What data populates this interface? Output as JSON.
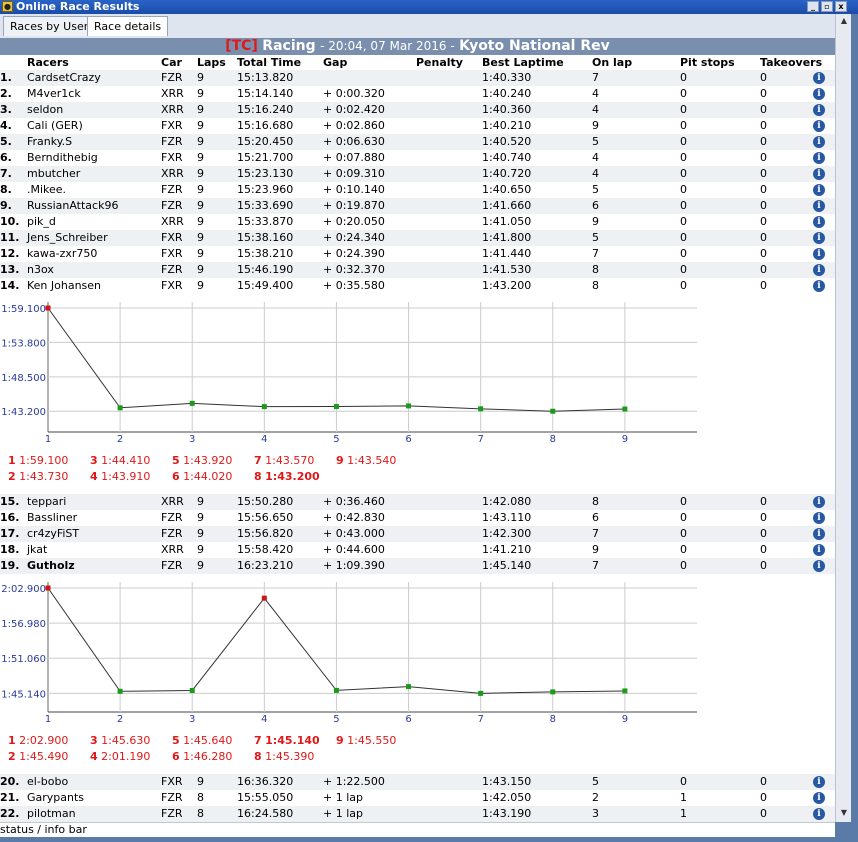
{
  "window": {
    "title": "Online Race Results",
    "minimize": "_",
    "maximize": "▫",
    "close": "x"
  },
  "tabs": [
    {
      "label": "Races by User"
    },
    {
      "label": "Race details"
    }
  ],
  "race": {
    "tag": "[TC]",
    "session": "Racing",
    "time": "- 20:04, 07 Mar 2016 -",
    "track": "Kyoto National Rev"
  },
  "headers": {
    "racers": "Racers",
    "car": "Car",
    "laps": "Laps",
    "total": "Total Time",
    "gap": "Gap",
    "penalty": "Penalty",
    "best": "Best Laptime",
    "onlap": "On lap",
    "pit": "Pit stops",
    "take": "Takeovers"
  },
  "rows1": [
    {
      "pos": "1.",
      "name": "CardsetCrazy",
      "car": "FZR",
      "laps": "9",
      "total": "15:13.820",
      "gap": "",
      "best": "1:40.330",
      "onlap": "7",
      "pit": "0",
      "take": "0"
    },
    {
      "pos": "2.",
      "name": "M4ver1ck",
      "car": "XRR",
      "laps": "9",
      "total": "15:14.140",
      "gap": "+ 0:00.320",
      "best": "1:40.240",
      "onlap": "4",
      "pit": "0",
      "take": "0"
    },
    {
      "pos": "3.",
      "name": "seldon",
      "car": "XRR",
      "laps": "9",
      "total": "15:16.240",
      "gap": "+ 0:02.420",
      "best": "1:40.360",
      "onlap": "4",
      "pit": "0",
      "take": "0"
    },
    {
      "pos": "4.",
      "name": "Cali (GER)",
      "car": "FXR",
      "laps": "9",
      "total": "15:16.680",
      "gap": "+ 0:02.860",
      "best": "1:40.210",
      "onlap": "9",
      "pit": "0",
      "take": "0"
    },
    {
      "pos": "5.",
      "name": "Franky.S",
      "car": "FZR",
      "laps": "9",
      "total": "15:20.450",
      "gap": "+ 0:06.630",
      "best": "1:40.520",
      "onlap": "5",
      "pit": "0",
      "take": "0"
    },
    {
      "pos": "6.",
      "name": "Berndithebig",
      "car": "FXR",
      "laps": "9",
      "total": "15:21.700",
      "gap": "+ 0:07.880",
      "best": "1:40.740",
      "onlap": "4",
      "pit": "0",
      "take": "0"
    },
    {
      "pos": "7.",
      "name": "mbutcher",
      "car": "XRR",
      "laps": "9",
      "total": "15:23.130",
      "gap": "+ 0:09.310",
      "best": "1:40.720",
      "onlap": "4",
      "pit": "0",
      "take": "0"
    },
    {
      "pos": "8.",
      "name": ".Mikee.",
      "car": "FZR",
      "laps": "9",
      "total": "15:23.960",
      "gap": "+ 0:10.140",
      "best": "1:40.650",
      "onlap": "5",
      "pit": "0",
      "take": "0"
    },
    {
      "pos": "9.",
      "name": "RussianAttack96",
      "car": "FZR",
      "laps": "9",
      "total": "15:33.690",
      "gap": "+ 0:19.870",
      "best": "1:41.660",
      "onlap": "6",
      "pit": "0",
      "take": "0"
    },
    {
      "pos": "10.",
      "name": "pik_d",
      "car": "XRR",
      "laps": "9",
      "total": "15:33.870",
      "gap": "+ 0:20.050",
      "best": "1:41.050",
      "onlap": "9",
      "pit": "0",
      "take": "0"
    },
    {
      "pos": "11.",
      "name": "Jens_Schreiber",
      "car": "FXR",
      "laps": "9",
      "total": "15:38.160",
      "gap": "+ 0:24.340",
      "best": "1:41.800",
      "onlap": "5",
      "pit": "0",
      "take": "0"
    },
    {
      "pos": "12.",
      "name": "kawa-zxr750",
      "car": "FXR",
      "laps": "9",
      "total": "15:38.210",
      "gap": "+ 0:24.390",
      "best": "1:41.440",
      "onlap": "7",
      "pit": "0",
      "take": "0"
    },
    {
      "pos": "13.",
      "name": "n3ox",
      "car": "FZR",
      "laps": "9",
      "total": "15:46.190",
      "gap": "+ 0:32.370",
      "best": "1:41.530",
      "onlap": "8",
      "pit": "0",
      "take": "0"
    },
    {
      "pos": "14.",
      "name": "Ken Johansen",
      "car": "FXR",
      "laps": "9",
      "total": "15:49.400",
      "gap": "+ 0:35.580",
      "best": "1:43.200",
      "onlap": "8",
      "pit": "0",
      "take": "0"
    }
  ],
  "rows2": [
    {
      "pos": "15.",
      "name": "teppari",
      "car": "XRR",
      "laps": "9",
      "total": "15:50.280",
      "gap": "+ 0:36.460",
      "best": "1:42.080",
      "onlap": "8",
      "pit": "0",
      "take": "0"
    },
    {
      "pos": "16.",
      "name": "Bassliner",
      "car": "FZR",
      "laps": "9",
      "total": "15:56.650",
      "gap": "+ 0:42.830",
      "best": "1:43.110",
      "onlap": "6",
      "pit": "0",
      "take": "0"
    },
    {
      "pos": "17.",
      "name": "cr4zyFiST",
      "car": "FZR",
      "laps": "9",
      "total": "15:56.820",
      "gap": "+ 0:43.000",
      "best": "1:42.300",
      "onlap": "7",
      "pit": "0",
      "take": "0"
    },
    {
      "pos": "18.",
      "name": "jkat",
      "car": "XRR",
      "laps": "9",
      "total": "15:58.420",
      "gap": "+ 0:44.600",
      "best": "1:41.210",
      "onlap": "9",
      "pit": "0",
      "take": "0"
    },
    {
      "pos": "19.",
      "name": "Gutholz",
      "car": "FZR",
      "laps": "9",
      "total": "16:23.210",
      "gap": "+ 1:09.390",
      "best": "1:45.140",
      "onlap": "7",
      "pit": "0",
      "take": "0",
      "bold": true
    }
  ],
  "rows3": [
    {
      "pos": "20.",
      "name": "el-bobo",
      "car": "FXR",
      "laps": "9",
      "total": "16:36.320",
      "gap": "+ 1:22.500",
      "best": "1:43.150",
      "onlap": "5",
      "pit": "0",
      "take": "0"
    },
    {
      "pos": "21.",
      "name": "Garypants",
      "car": "FZR",
      "laps": "8",
      "total": "15:55.050",
      "gap": "+ 1 lap",
      "best": "1:42.050",
      "onlap": "2",
      "pit": "1",
      "take": "0"
    },
    {
      "pos": "22.",
      "name": "pilotman",
      "car": "FZR",
      "laps": "8",
      "total": "16:24.580",
      "gap": "+ 1 lap",
      "best": "1:43.190",
      "onlap": "3",
      "pit": "1",
      "take": "0"
    }
  ],
  "chart_data": [
    {
      "type": "line",
      "x": [
        1,
        2,
        3,
        4,
        5,
        6,
        7,
        8,
        9
      ],
      "x_tick_labels": [
        "1",
        "2",
        "3",
        "4",
        "5",
        "6",
        "7",
        "8",
        "9"
      ],
      "y_tick_labels": [
        "1:59.100",
        "1:53.800",
        "1:48.500",
        "1:43.200"
      ],
      "y_ticks_seconds": [
        119.1,
        113.8,
        108.5,
        103.2
      ],
      "series": [
        {
          "values_seconds": [
            119.1,
            103.73,
            104.41,
            103.91,
            103.92,
            104.02,
            103.57,
            103.2,
            103.54
          ]
        }
      ],
      "ylim_seconds": [
        100.0,
        119.1
      ],
      "grid": true,
      "highlight_lap": 1,
      "laptimes": [
        {
          "lap": "1",
          "time": "1:59.100"
        },
        {
          "lap": "2",
          "time": "1:43.730"
        },
        {
          "lap": "3",
          "time": "1:44.410"
        },
        {
          "lap": "4",
          "time": "1:43.910"
        },
        {
          "lap": "5",
          "time": "1:43.920"
        },
        {
          "lap": "6",
          "time": "1:44.020"
        },
        {
          "lap": "7",
          "time": "1:43.570"
        },
        {
          "lap": "8",
          "time": "1:43.200",
          "best": true
        },
        {
          "lap": "9",
          "time": "1:43.540"
        }
      ]
    },
    {
      "type": "line",
      "x": [
        1,
        2,
        3,
        4,
        5,
        6,
        7,
        8,
        9
      ],
      "x_tick_labels": [
        "1",
        "2",
        "3",
        "4",
        "5",
        "6",
        "7",
        "8",
        "9"
      ],
      "y_tick_labels": [
        "2:02.900",
        "1:56.980",
        "1:51.060",
        "1:45.140"
      ],
      "y_ticks_seconds": [
        122.9,
        116.98,
        111.06,
        105.14
      ],
      "series": [
        {
          "values_seconds": [
            122.9,
            105.49,
            105.63,
            121.19,
            105.64,
            106.28,
            105.14,
            105.39,
            105.55
          ]
        }
      ],
      "ylim_seconds": [
        102.0,
        122.9
      ],
      "grid": true,
      "highlight_lap": 1,
      "highlight_lap_2": 4,
      "laptimes": [
        {
          "lap": "1",
          "time": "2:02.900"
        },
        {
          "lap": "2",
          "time": "1:45.490"
        },
        {
          "lap": "3",
          "time": "1:45.630"
        },
        {
          "lap": "4",
          "time": "2:01.190"
        },
        {
          "lap": "5",
          "time": "1:45.640"
        },
        {
          "lap": "6",
          "time": "1:46.280"
        },
        {
          "lap": "7",
          "time": "1:45.140",
          "best": true
        },
        {
          "lap": "8",
          "time": "1:45.390"
        },
        {
          "lap": "9",
          "time": "1:45.550"
        }
      ]
    }
  ],
  "status": {
    "text": "status / info bar"
  },
  "colors": {
    "accent_red": "#e01818",
    "title_blue": "#1a4ca8",
    "point_green": "#1a9a1a",
    "point_red": "#c81818"
  }
}
